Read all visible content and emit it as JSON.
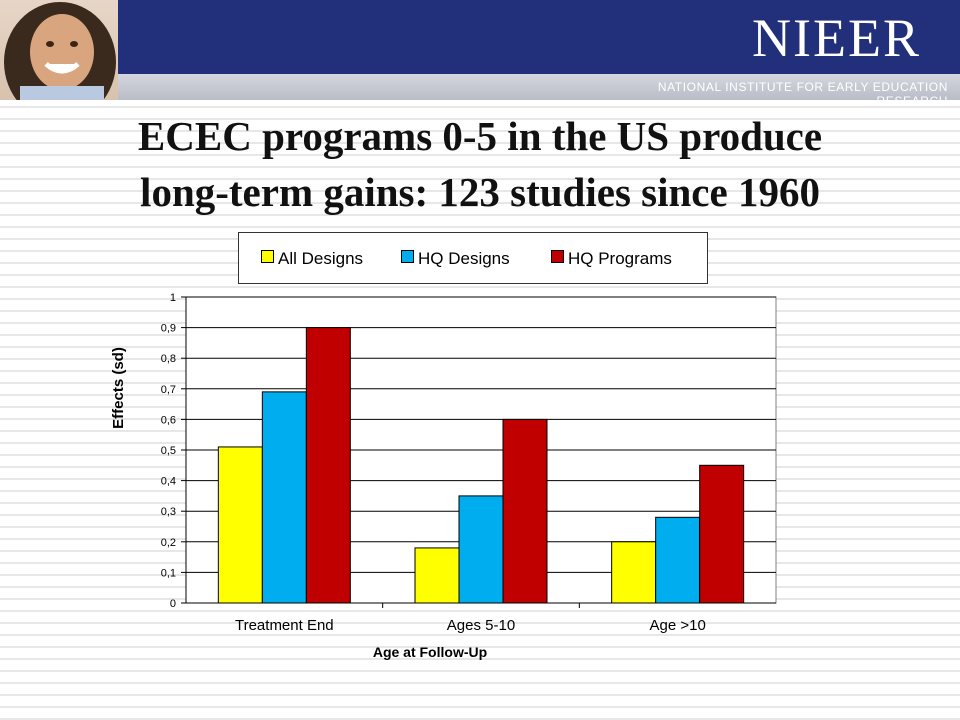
{
  "header": {
    "logo": "NIEER",
    "tagline": "NATIONAL INSTITUTE FOR EARLY EDUCATION RESEARCH"
  },
  "slide": {
    "title_line1": "ECEC programs 0-5 in the US produce",
    "title_line2": "long-term gains: 123 studies since 1960"
  },
  "colors": {
    "banner": "#22307c",
    "all_designs": "#ffff00",
    "hq_designs": "#00aef0",
    "hq_programs": "#c00000"
  },
  "chart_data": {
    "type": "bar",
    "categories": [
      "Treatment End",
      "Ages 5-10",
      "Age >10"
    ],
    "series": [
      {
        "name": "All Designs",
        "values": [
          0.51,
          0.18,
          0.2
        ],
        "color": "#ffff00"
      },
      {
        "name": "HQ Designs",
        "values": [
          0.69,
          0.35,
          0.28
        ],
        "color": "#00aef0"
      },
      {
        "name": "HQ Programs",
        "values": [
          0.9,
          0.6,
          0.45
        ],
        "color": "#c00000"
      }
    ],
    "title": "",
    "xlabel": "Age at Follow-Up",
    "ylabel": "Effects (sd)",
    "ylim": [
      0,
      1
    ],
    "yticks": [
      "0",
      "0,1",
      "0,2",
      "0,3",
      "0,4",
      "0,5",
      "0,6",
      "0,7",
      "0,8",
      "0,9",
      "1"
    ],
    "grid": true,
    "legend": "top"
  }
}
